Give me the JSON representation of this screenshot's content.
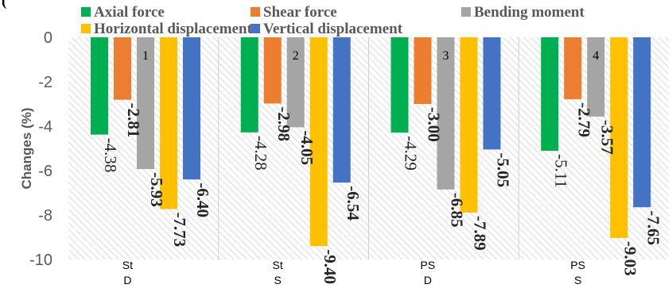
{
  "chart_data": {
    "type": "bar",
    "ylabel": "Changes (%)",
    "ylim": [
      -10,
      0
    ],
    "yticks": [
      "0",
      "-2",
      "-4",
      "-6",
      "-8",
      "-10"
    ],
    "categories": [
      {
        "line1": "St",
        "line2": "D",
        "group_number": "1"
      },
      {
        "line1": "St",
        "line2": "S",
        "group_number": "2"
      },
      {
        "line1": "PS",
        "line2": "D",
        "group_number": "3"
      },
      {
        "line1": "PS",
        "line2": "S",
        "group_number": "4"
      }
    ],
    "series": [
      {
        "name": "Axial force",
        "color": "#00b050",
        "values": [
          -4.38,
          -4.28,
          -4.29,
          -5.11
        ],
        "labels": [
          "-4.38",
          "-4.28",
          "-4.29",
          "-5.11"
        ],
        "bold_labels": false
      },
      {
        "name": "Shear force",
        "color": "#ed7d31",
        "values": [
          -2.81,
          -2.98,
          -3.0,
          -2.79
        ],
        "labels": [
          "-2.81",
          "-2.98",
          "-3.00",
          "-2.79"
        ],
        "bold_labels": true
      },
      {
        "name": "Bending moment",
        "color": "#a5a5a5",
        "values": [
          -5.93,
          -4.05,
          -6.85,
          -3.57
        ],
        "labels": [
          "-5.93",
          "-4.05",
          "-6.85",
          "-3.57"
        ],
        "bold_labels": true
      },
      {
        "name": "Horizontal displacement",
        "color": "#ffc000",
        "values": [
          -7.73,
          -9.4,
          -7.89,
          -9.03
        ],
        "labels": [
          "-7.73",
          "-9.40",
          "-7.89",
          "-9.03"
        ],
        "bold_labels": true
      },
      {
        "name": "Vertical displacement",
        "color": "#4472c4",
        "values": [
          -6.4,
          -6.54,
          -5.05,
          -7.65
        ],
        "labels": [
          "-6.40",
          "-6.54",
          "-5.05",
          "-7.65"
        ],
        "bold_labels": true
      }
    ],
    "legend": "top",
    "grid": false,
    "background": "diagonal-hatch"
  }
}
